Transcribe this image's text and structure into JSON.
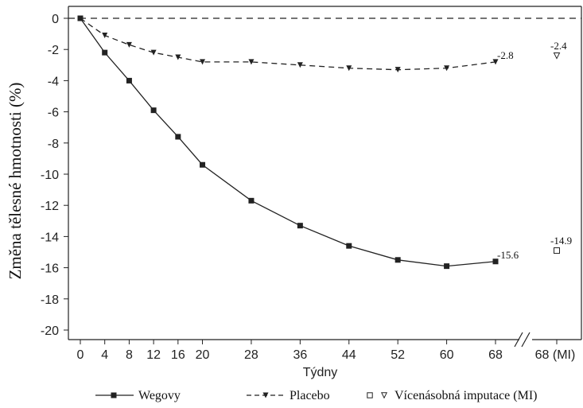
{
  "chart_data": {
    "type": "line",
    "xlabel": "Týdny",
    "ylabel": "Změna tělesné hmotnosti (%)",
    "ylim": [
      -20,
      0
    ],
    "y_ticks": [
      0,
      -2,
      -4,
      -6,
      -8,
      -10,
      -12,
      -14,
      -16,
      -18,
      -20
    ],
    "x_ticks": [
      0,
      4,
      8,
      12,
      16,
      20,
      28,
      36,
      44,
      52,
      60,
      68
    ],
    "mi_tick_label": "68 (MI)",
    "reference_line": 0,
    "series": [
      {
        "name": "Wegovy",
        "style": "solid",
        "marker": "square",
        "x": [
          0,
          4,
          8,
          12,
          16,
          20,
          28,
          36,
          44,
          52,
          60,
          68
        ],
        "values": [
          0,
          -2.2,
          -4.0,
          -5.9,
          -7.6,
          -9.4,
          -11.7,
          -13.3,
          -14.6,
          -15.5,
          -15.9,
          -15.6
        ],
        "end_label": "-15.6"
      },
      {
        "name": "Placebo",
        "style": "dashed",
        "marker": "triangle-down",
        "x": [
          0,
          4,
          8,
          12,
          16,
          20,
          28,
          36,
          44,
          52,
          60,
          68
        ],
        "values": [
          0,
          -1.1,
          -1.7,
          -2.2,
          -2.5,
          -2.8,
          -2.8,
          -3.0,
          -3.2,
          -3.3,
          -3.2,
          -2.8
        ],
        "end_label": "-2.8"
      }
    ],
    "mi_points": [
      {
        "series": "Wegovy",
        "marker": "square-open",
        "value": -14.9,
        "label": "-14.9"
      },
      {
        "series": "Placebo",
        "marker": "triangle-open",
        "value": -2.4,
        "label": "-2.4"
      }
    ],
    "legend": {
      "placement": "bottom",
      "entries": [
        {
          "label": "Wegovy",
          "style": "solid",
          "marker": "square"
        },
        {
          "label": "Placebo",
          "style": "dashed",
          "marker": "triangle-down"
        },
        {
          "label": "Vícenásobná imputace (MI)",
          "style": "none",
          "marker": "square-open+triangle-open"
        }
      ]
    },
    "colors": {
      "line": "#222222",
      "background": "#ffffff"
    }
  }
}
